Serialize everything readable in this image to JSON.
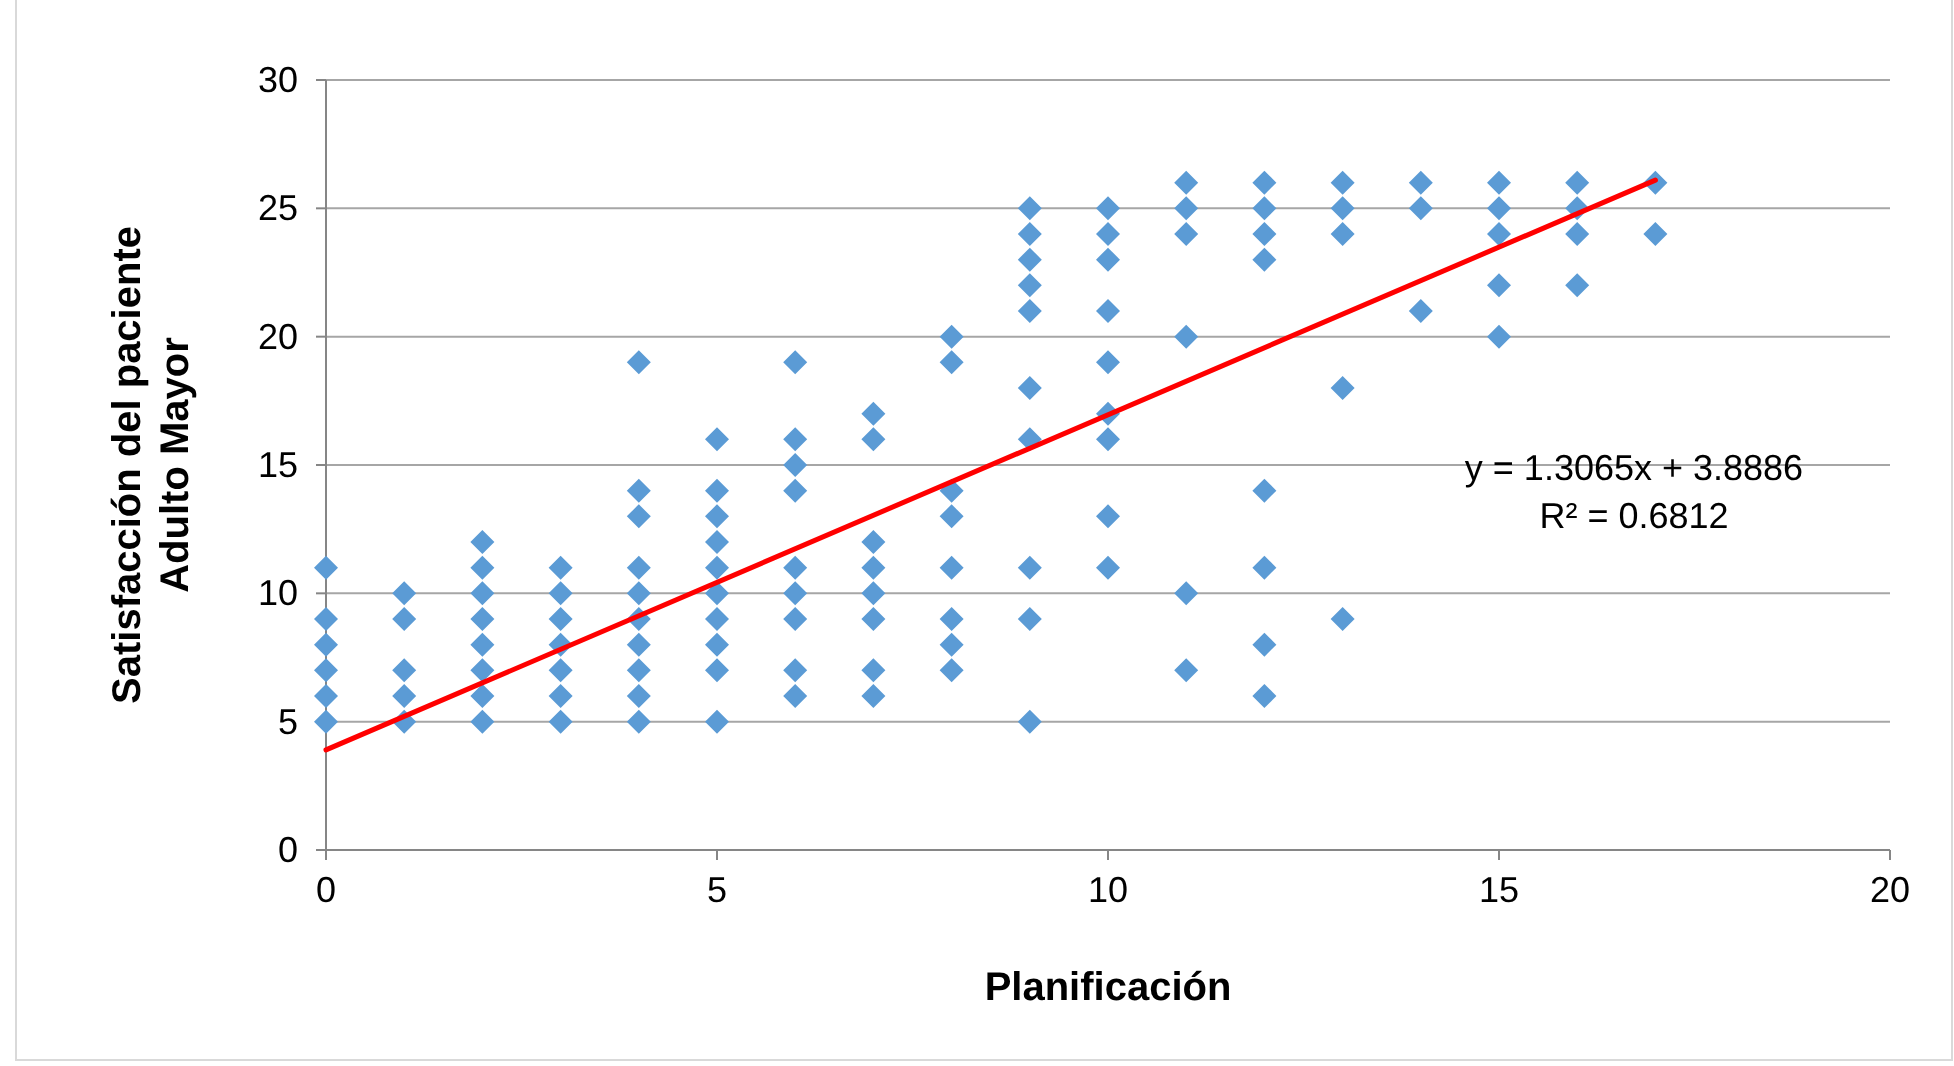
{
  "chart_data": {
    "type": "scatter",
    "xlabel": "Planificación",
    "ylabel": "Satisfacción del paciente\nAdulto Mayor",
    "xlim": [
      0,
      20
    ],
    "ylim": [
      0,
      30
    ],
    "xticks": [
      0,
      5,
      10,
      15,
      20
    ],
    "yticks": [
      0,
      5,
      10,
      15,
      20,
      25,
      30
    ],
    "grid": "y",
    "marker": "diamond",
    "annotations": [
      "y = 1.3065x + 3.8886",
      "R² = 0.6812"
    ],
    "series": [
      {
        "color": "#5b9bd5",
        "x": [
          0,
          0,
          0,
          0,
          0,
          0,
          1,
          1,
          1,
          1,
          1,
          2,
          2,
          2,
          2,
          2,
          2,
          2,
          2,
          3,
          3,
          3,
          3,
          3,
          3,
          3,
          4,
          4,
          4,
          4,
          4,
          4,
          4,
          4,
          4,
          4,
          5,
          5,
          5,
          5,
          5,
          5,
          5,
          5,
          5,
          5,
          6,
          6,
          6,
          6,
          6,
          6,
          6,
          6,
          6,
          7,
          7,
          7,
          7,
          7,
          7,
          7,
          7,
          8,
          8,
          8,
          8,
          8,
          8,
          8,
          8,
          9,
          9,
          9,
          9,
          9,
          9,
          9,
          9,
          9,
          9,
          10,
          10,
          10,
          10,
          10,
          10,
          10,
          10,
          10,
          11,
          11,
          11,
          11,
          11,
          11,
          12,
          12,
          12,
          12,
          12,
          12,
          12,
          12,
          13,
          13,
          13,
          13,
          13,
          14,
          14,
          14,
          15,
          15,
          15,
          15,
          15,
          16,
          16,
          16,
          16,
          17,
          17
        ],
        "values": [
          5,
          6,
          7,
          8,
          9,
          11,
          5,
          6,
          7,
          9,
          10,
          5,
          6,
          7,
          8,
          9,
          10,
          11,
          12,
          5,
          6,
          7,
          8,
          9,
          10,
          11,
          5,
          6,
          7,
          8,
          9,
          10,
          11,
          13,
          14,
          19,
          5,
          7,
          8,
          9,
          10,
          11,
          12,
          13,
          14,
          16,
          6,
          7,
          9,
          10,
          11,
          14,
          15,
          16,
          19,
          6,
          7,
          9,
          10,
          11,
          12,
          16,
          17,
          7,
          8,
          9,
          11,
          13,
          14,
          19,
          20,
          5,
          9,
          11,
          16,
          18,
          21,
          22,
          23,
          24,
          25,
          11,
          13,
          16,
          17,
          19,
          21,
          23,
          24,
          25,
          7,
          10,
          20,
          24,
          25,
          26,
          6,
          8,
          11,
          14,
          23,
          24,
          25,
          26,
          9,
          18,
          24,
          25,
          26,
          21,
          25,
          26,
          20,
          22,
          24,
          25,
          26,
          22,
          24,
          25,
          26,
          24,
          26
        ]
      },
      {
        "type": "line",
        "marker": "none",
        "color": "#ff0000",
        "x": [
          0,
          17
        ],
        "values": [
          3.9,
          26.1
        ]
      }
    ]
  }
}
